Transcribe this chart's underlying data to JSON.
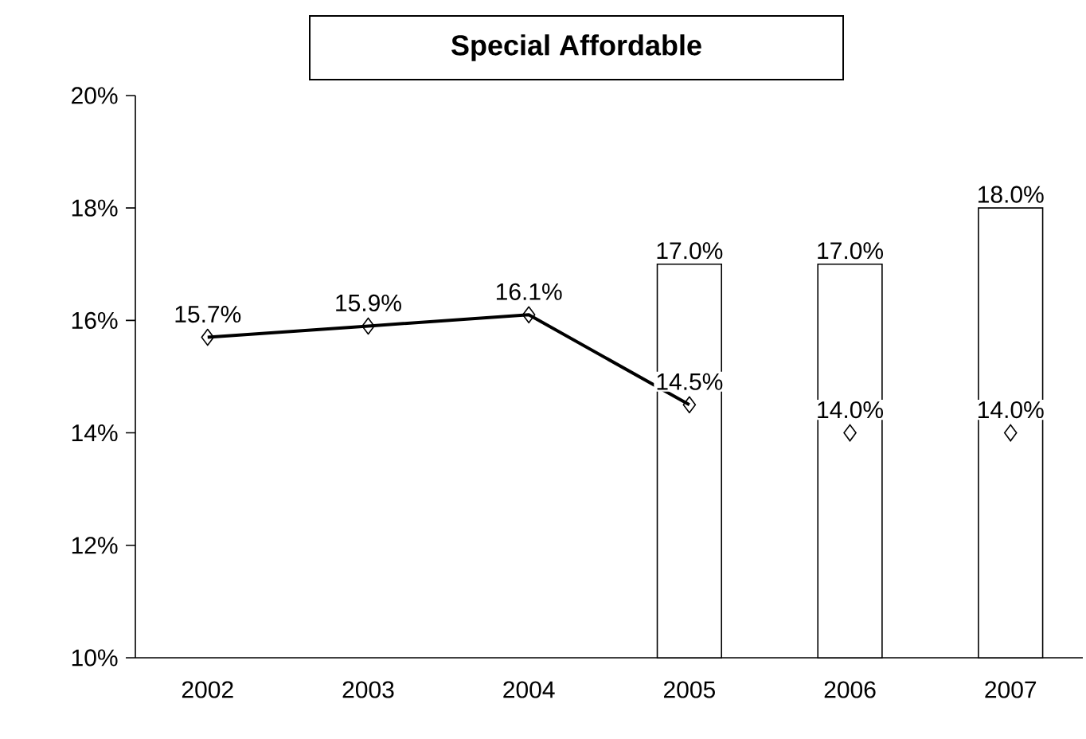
{
  "chart_data": {
    "type": "bar",
    "title": "Special Affordable",
    "categories": [
      "2002",
      "2003",
      "2004",
      "2005",
      "2006",
      "2007"
    ],
    "series": [
      {
        "color": "#ffffff",
        "values": [
          null,
          null,
          null,
          17.0,
          17.0,
          18.0
        ],
        "value_labels": [
          null,
          null,
          null,
          "17.0%",
          "17.0%",
          "18.0%"
        ]
      },
      {
        "type": "line",
        "color": "#000000",
        "marker": "diamond",
        "values": [
          15.7,
          15.9,
          16.1,
          14.5,
          null,
          null
        ],
        "value_labels": [
          "15.7%",
          "15.9%",
          "16.1%",
          "14.5%",
          null,
          null
        ]
      },
      {
        "type": "scatter",
        "color": "#000000",
        "marker": "diamond",
        "values": [
          null,
          null,
          null,
          null,
          14.0,
          14.0
        ],
        "value_labels": [
          null,
          null,
          null,
          null,
          "14.0%",
          "14.0%"
        ]
      }
    ],
    "ylim": [
      10,
      20
    ],
    "yticks": [
      {
        "value": 10,
        "label": "10%"
      },
      {
        "value": 12,
        "label": "12%"
      },
      {
        "value": 14,
        "label": "14%"
      },
      {
        "value": 16,
        "label": "16%"
      },
      {
        "value": 18,
        "label": "18%"
      },
      {
        "value": 20,
        "label": "20%"
      }
    ],
    "grid": false
  }
}
